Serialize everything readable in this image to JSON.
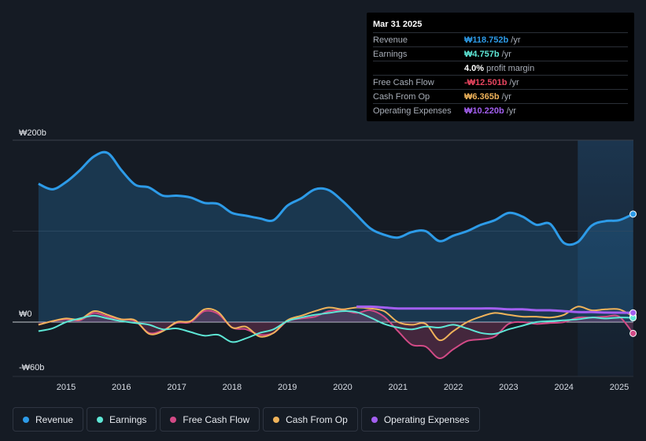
{
  "tooltip": {
    "date": "Mar 31 2025",
    "rows": [
      {
        "label": "Revenue",
        "value": "₩118.752b",
        "unit": "/yr",
        "color": "#2d9be8"
      },
      {
        "label": "Earnings",
        "value": "₩4.757b",
        "unit": "/yr",
        "color": "#5ee7d6"
      },
      {
        "label": "Free Cash Flow",
        "value": "-₩12.501b",
        "unit": "/yr",
        "color": "#e8455f"
      },
      {
        "label": "Cash From Op",
        "value": "₩6.365b",
        "unit": "/yr",
        "color": "#f0b35a"
      },
      {
        "label": "Operating Expenses",
        "value": "₩10.220b",
        "unit": "/yr",
        "color": "#a35ff0"
      }
    ],
    "margin_value": "4.0%",
    "margin_label": "profit margin"
  },
  "legend": [
    {
      "label": "Revenue",
      "color": "#2d9be8"
    },
    {
      "label": "Earnings",
      "color": "#5ee7d6"
    },
    {
      "label": "Free Cash Flow",
      "color": "#d24a86"
    },
    {
      "label": "Cash From Op",
      "color": "#f0b35a"
    },
    {
      "label": "Operating Expenses",
      "color": "#a35ff0"
    }
  ],
  "chart_data": {
    "type": "line",
    "title": "",
    "y_axis_labels": [
      "₩200b",
      "₩0",
      "-₩60b"
    ],
    "ylim": [
      -60,
      200
    ],
    "xlim": [
      2014.5,
      2025.25
    ],
    "x_ticks": [
      2015,
      2016,
      2017,
      2018,
      2019,
      2020,
      2021,
      2022,
      2023,
      2024,
      2025
    ],
    "x_tick_labels": [
      "2015",
      "2016",
      "2017",
      "2018",
      "2019",
      "2020",
      "2021",
      "2022",
      "2023",
      "2024",
      "2025"
    ],
    "forecast_start": 2024.25,
    "series": [
      {
        "name": "Revenue",
        "color": "#2d9be8",
        "fill": true,
        "x": [
          2014.5,
          2014.75,
          2015.0,
          2015.25,
          2015.5,
          2015.75,
          2016.0,
          2016.25,
          2016.5,
          2016.75,
          2017.0,
          2017.25,
          2017.5,
          2017.75,
          2018.0,
          2018.25,
          2018.5,
          2018.75,
          2019.0,
          2019.25,
          2019.5,
          2019.75,
          2020.0,
          2020.25,
          2020.5,
          2020.75,
          2021.0,
          2021.25,
          2021.5,
          2021.75,
          2022.0,
          2022.25,
          2022.5,
          2022.75,
          2023.0,
          2023.25,
          2023.5,
          2023.75,
          2024.0,
          2024.25,
          2024.5,
          2024.75,
          2025.0,
          2025.25
        ],
        "y": [
          152,
          146,
          154,
          167,
          182,
          186,
          167,
          151,
          148,
          139,
          139,
          137,
          131,
          130,
          120,
          117,
          114,
          112,
          128,
          136,
          146,
          145,
          133,
          118,
          103,
          96,
          93,
          99,
          100,
          89,
          95,
          100,
          107,
          112,
          120,
          116,
          107,
          108,
          87,
          88,
          106,
          111,
          112,
          118.752
        ]
      },
      {
        "name": "Earnings",
        "color": "#5ee7d6",
        "fill": false,
        "x": [
          2014.5,
          2014.75,
          2015.0,
          2015.25,
          2015.5,
          2015.75,
          2016.0,
          2016.25,
          2016.5,
          2016.75,
          2017.0,
          2017.25,
          2017.5,
          2017.75,
          2018.0,
          2018.25,
          2018.5,
          2018.75,
          2019.0,
          2019.25,
          2019.5,
          2019.75,
          2020.0,
          2020.25,
          2020.5,
          2020.75,
          2021.0,
          2021.25,
          2021.5,
          2021.75,
          2022.0,
          2022.25,
          2022.5,
          2022.75,
          2023.0,
          2023.25,
          2023.5,
          2023.75,
          2024.0,
          2024.25,
          2024.5,
          2024.75,
          2025.0,
          2025.25
        ],
        "y": [
          -10,
          -7,
          0,
          4,
          7,
          4,
          1,
          -1,
          -3,
          -8,
          -7,
          -11,
          -15,
          -14,
          -22,
          -18,
          -12,
          -8,
          1,
          5,
          8,
          10,
          12,
          11,
          5,
          -2,
          -6,
          -8,
          -5,
          -6,
          -3,
          -7,
          -12,
          -13,
          -8,
          -4,
          0,
          1,
          2,
          3,
          5,
          4,
          5,
          4.757
        ]
      },
      {
        "name": "Free Cash Flow",
        "color": "#d24a86",
        "fill": true,
        "x": [
          2014.5,
          2014.75,
          2015.0,
          2015.25,
          2015.5,
          2015.75,
          2016.0,
          2016.25,
          2016.5,
          2016.75,
          2017.0,
          2017.25,
          2017.5,
          2017.75,
          2018.0,
          2018.25,
          2018.5,
          2018.75,
          2019.0,
          2019.25,
          2019.5,
          2019.75,
          2020.0,
          2020.25,
          2020.5,
          2020.75,
          2021.0,
          2021.25,
          2021.5,
          2021.75,
          2022.0,
          2022.25,
          2022.5,
          2022.75,
          2023.0,
          2023.25,
          2023.5,
          2023.75,
          2024.0,
          2024.25,
          2024.5,
          2024.75,
          2025.0,
          2025.25
        ],
        "y": [
          -3,
          1,
          3,
          2,
          10,
          6,
          3,
          1,
          -12,
          -9,
          -1,
          0,
          12,
          9,
          -6,
          -8,
          -14,
          -12,
          1,
          4,
          6,
          12,
          13,
          10,
          13,
          6,
          -10,
          -25,
          -27,
          -40,
          -30,
          -21,
          -19,
          -16,
          -2,
          0,
          -2,
          -1,
          0,
          5,
          5,
          6,
          6,
          -12.501
        ]
      },
      {
        "name": "Cash From Op",
        "color": "#f0b35a",
        "fill": false,
        "x": [
          2014.5,
          2014.75,
          2015.0,
          2015.25,
          2015.5,
          2015.75,
          2016.0,
          2016.25,
          2016.5,
          2016.75,
          2017.0,
          2017.25,
          2017.5,
          2017.75,
          2018.0,
          2018.25,
          2018.5,
          2018.75,
          2019.0,
          2019.25,
          2019.5,
          2019.75,
          2020.0,
          2020.25,
          2020.5,
          2020.75,
          2021.0,
          2021.25,
          2021.5,
          2021.75,
          2022.0,
          2022.25,
          2022.5,
          2022.75,
          2023.0,
          2023.25,
          2023.5,
          2023.75,
          2024.0,
          2024.25,
          2024.5,
          2024.75,
          2025.0,
          2025.25
        ],
        "y": [
          -3,
          1,
          4,
          3,
          12,
          8,
          3,
          2,
          -13,
          -10,
          0,
          1,
          14,
          11,
          -6,
          -5,
          -16,
          -12,
          2,
          7,
          12,
          16,
          14,
          16,
          15,
          12,
          0,
          -3,
          -2,
          -20,
          -10,
          0,
          6,
          10,
          8,
          6,
          6,
          5,
          8,
          17,
          13,
          14,
          14,
          6.365
        ]
      },
      {
        "name": "Operating Expenses",
        "color": "#a35ff0",
        "fill": false,
        "x": [
          2020.25,
          2020.5,
          2020.75,
          2021.0,
          2021.25,
          2021.5,
          2021.75,
          2022.0,
          2022.25,
          2022.5,
          2022.75,
          2023.0,
          2023.25,
          2023.5,
          2023.75,
          2024.0,
          2024.25,
          2024.5,
          2024.75,
          2025.0,
          2025.25
        ],
        "y": [
          17,
          17,
          16,
          15,
          15,
          15,
          15,
          15,
          15,
          15,
          15,
          14,
          14,
          13,
          13,
          12,
          11,
          11,
          10.5,
          10.4,
          10.22
        ]
      }
    ]
  }
}
